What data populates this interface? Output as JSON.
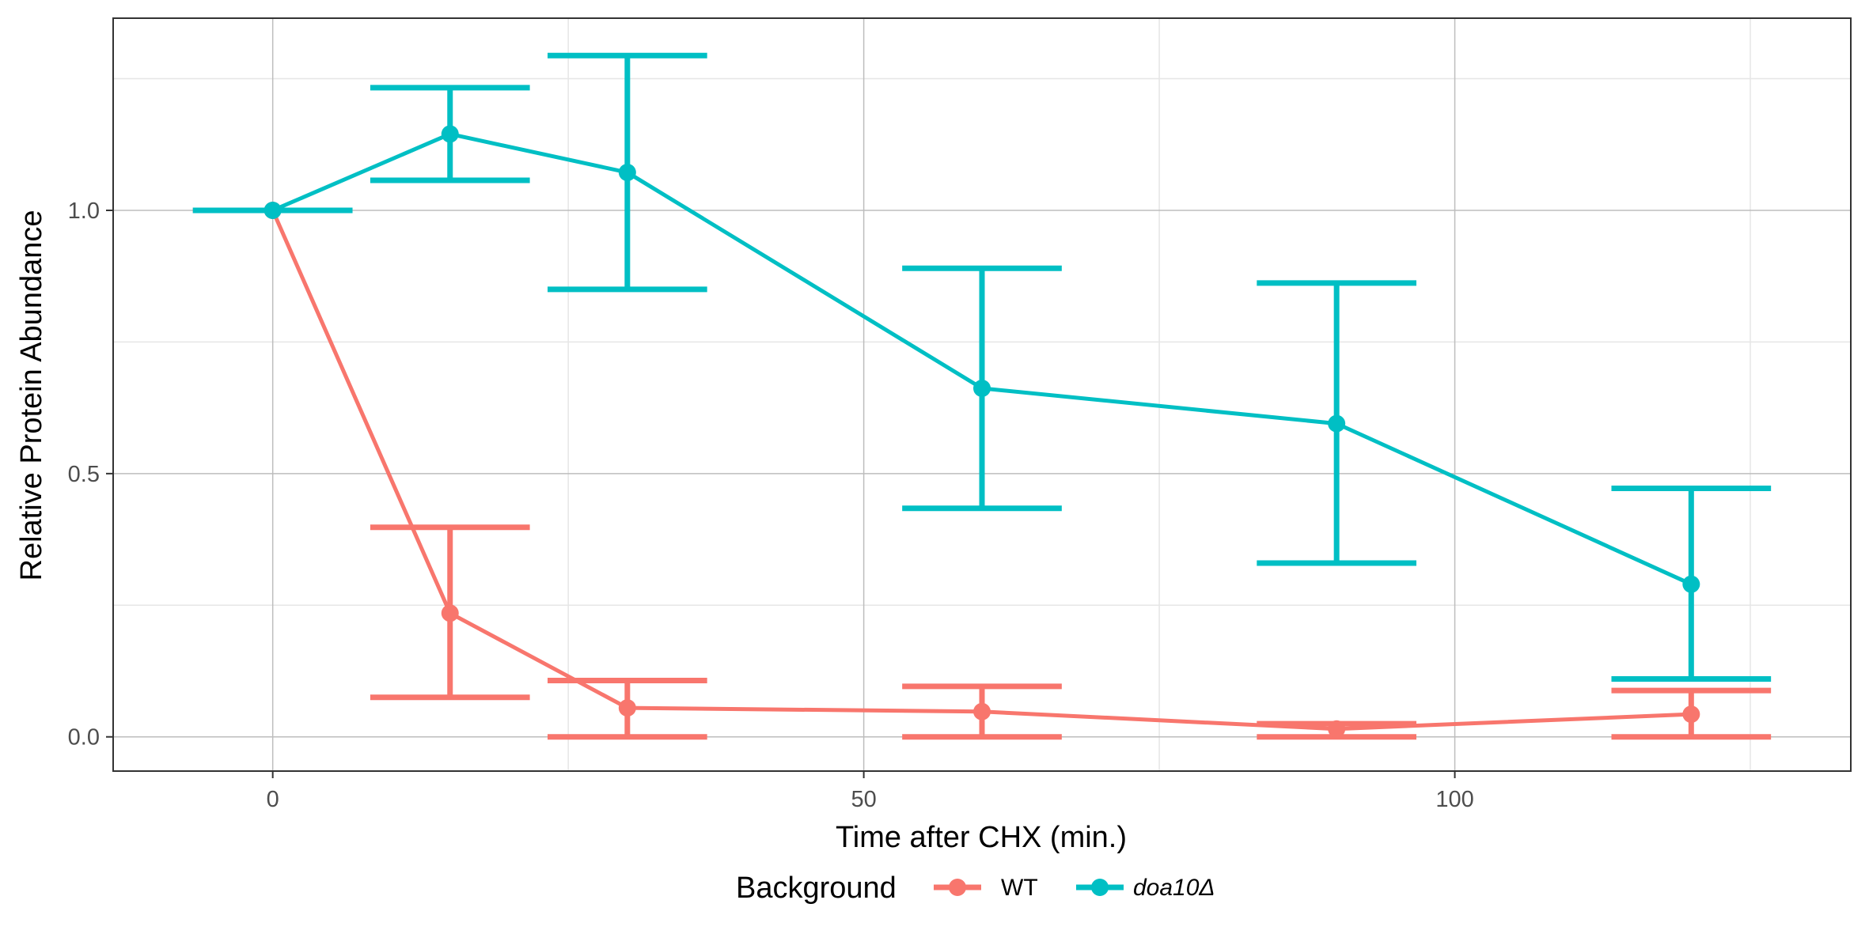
{
  "chart_data": {
    "type": "line",
    "xlabel": "Time after CHX (min.)",
    "ylabel": "Relative Protein Abundance",
    "xlim": [
      -13.5,
      133.5
    ],
    "ylim": [
      -0.065,
      1.365
    ],
    "x_ticks": [
      0,
      50,
      100
    ],
    "x_tick_labels": [
      "0",
      "50",
      "100"
    ],
    "y_ticks": [
      0.0,
      0.5,
      1.0
    ],
    "y_tick_labels": [
      "0.0",
      "0.5",
      "1.0"
    ],
    "grid": true,
    "legend": {
      "position": "bottom",
      "title": "Background",
      "entries": [
        "WT",
        "doa10Δ"
      ]
    },
    "series": [
      {
        "name": "WT",
        "color": "#F8766D",
        "x": [
          0,
          15,
          30,
          60,
          90,
          120
        ],
        "y": [
          1.0,
          0.235,
          0.055,
          0.048,
          0.015,
          0.043
        ],
        "err_low": [
          1.0,
          0.075,
          0.0,
          0.0,
          0.0,
          0.0
        ],
        "err_high": [
          1.0,
          0.398,
          0.107,
          0.096,
          0.025,
          0.088
        ]
      },
      {
        "name": "doa10Δ",
        "color": "#00BFC4",
        "x": [
          0,
          15,
          30,
          60,
          90,
          120
        ],
        "y": [
          1.0,
          1.145,
          1.072,
          0.662,
          0.595,
          0.29
        ],
        "err_low": [
          1.0,
          1.057,
          0.85,
          0.434,
          0.33,
          0.11
        ],
        "err_high": [
          1.0,
          1.233,
          1.294,
          0.89,
          0.862,
          0.472
        ]
      }
    ]
  }
}
